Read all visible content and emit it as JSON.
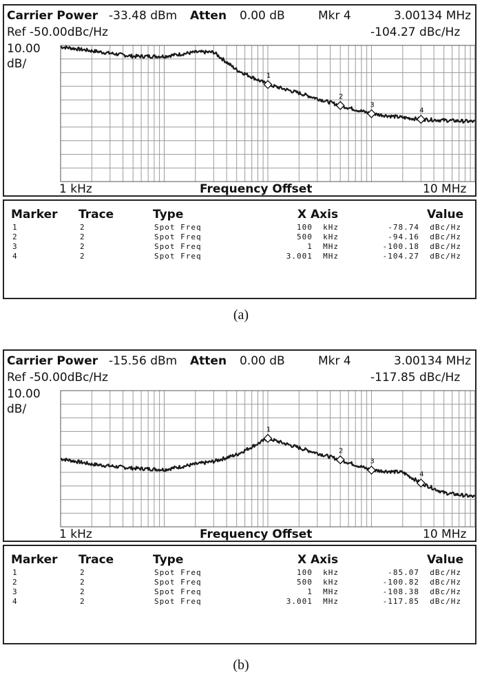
{
  "figures": [
    {
      "caption": "(a)",
      "header": {
        "carrier_label": "Carrier Power",
        "carrier_value": "-33.48 dBm",
        "atten_label": "Atten",
        "atten_value": "0.00 dB",
        "mkr_label": "Mkr 4",
        "mkr_freq": "3.00134 MHz",
        "ref_text": "Ref -50.00dBc/Hz",
        "mkr_value": "-104.27 dBc/Hz",
        "scale_top": "10.00",
        "scale_unit": "dB/"
      },
      "axis": {
        "start_label": "1 kHz",
        "center_label": "Frequency Offset",
        "end_label": "10 MHz"
      },
      "table": {
        "headers": [
          "Marker",
          "Trace",
          "Type",
          "X Axis",
          "Value"
        ],
        "rows": [
          {
            "marker": "1",
            "trace": "2",
            "type": "Spot Freq",
            "x_axis": "100  kHz",
            "value": "-78.74  dBc/Hz"
          },
          {
            "marker": "2",
            "trace": "2",
            "type": "Spot Freq",
            "x_axis": "500  kHz",
            "value": "-94.16  dBc/Hz"
          },
          {
            "marker": "3",
            "trace": "2",
            "type": "Spot Freq",
            "x_axis": "1  MHz",
            "value": "-100.18  dBc/Hz"
          },
          {
            "marker": "4",
            "trace": "2",
            "type": "Spot Freq",
            "x_axis": "3.001  MHz",
            "value": "-104.27  dBc/Hz"
          }
        ]
      }
    },
    {
      "caption": "(b)",
      "header": {
        "carrier_label": "Carrier Power",
        "carrier_value": "-15.56 dBm",
        "atten_label": "Atten",
        "atten_value": "0.00 dB",
        "mkr_label": "Mkr 4",
        "mkr_freq": "3.00134 MHz",
        "ref_text": "Ref -50.00dBc/Hz",
        "mkr_value": "-117.85 dBc/Hz",
        "scale_top": "10.00",
        "scale_unit": "dB/"
      },
      "axis": {
        "start_label": "1 kHz",
        "center_label": "Frequency Offset",
        "end_label": "10 MHz"
      },
      "table": {
        "headers": [
          "Marker",
          "Trace",
          "Type",
          "X Axis",
          "Value"
        ],
        "rows": [
          {
            "marker": "1",
            "trace": "2",
            "type": "Spot Freq",
            "x_axis": "100  kHz",
            "value": "-85.07  dBc/Hz"
          },
          {
            "marker": "2",
            "trace": "2",
            "type": "Spot Freq",
            "x_axis": "500  kHz",
            "value": "-100.82  dBc/Hz"
          },
          {
            "marker": "3",
            "trace": "2",
            "type": "Spot Freq",
            "x_axis": "1  MHz",
            "value": "-108.38  dBc/Hz"
          },
          {
            "marker": "4",
            "trace": "2",
            "type": "Spot Freq",
            "x_axis": "3.001  MHz",
            "value": "-117.85  dBc/Hz"
          }
        ]
      }
    }
  ],
  "chart_data": [
    {
      "type": "line",
      "x_scale": "log",
      "xlim_hz": [
        1000,
        10000000
      ],
      "ylim_dBc_per_Hz": [
        -150,
        -50
      ],
      "y_div_dB": 10,
      "grid": true,
      "series": [
        {
          "x_hz": [
            1000,
            2000,
            5000,
            10000,
            20000,
            30000,
            50000,
            100000,
            200000,
            500000,
            1000000,
            2000000,
            3001000,
            5000000,
            10000000
          ],
          "y_dBc_per_Hz": [
            -51,
            -54,
            -58,
            -58,
            -55,
            -55,
            -68,
            -78.74,
            -85,
            -94.16,
            -100.18,
            -103,
            -104.27,
            -105,
            -106
          ]
        }
      ],
      "markers": [
        {
          "label": "1",
          "x_hz": 100000,
          "y_dBc_per_Hz": -78.74
        },
        {
          "label": "2",
          "x_hz": 500000,
          "y_dBc_per_Hz": -94.16
        },
        {
          "label": "3",
          "x_hz": 1000000,
          "y_dBc_per_Hz": -100.18
        },
        {
          "label": "4",
          "x_hz": 3001000,
          "y_dBc_per_Hz": -104.27
        }
      ]
    },
    {
      "type": "line",
      "x_scale": "log",
      "xlim_hz": [
        1000,
        10000000
      ],
      "ylim_dBc_per_Hz": [
        -150,
        -50
      ],
      "y_div_dB": 10,
      "grid": true,
      "series": [
        {
          "x_hz": [
            1000,
            2000,
            5000,
            10000,
            20000,
            30000,
            50000,
            100000,
            200000,
            500000,
            1000000,
            2000000,
            3001000,
            5000000,
            10000000
          ],
          "y_dBc_per_Hz": [
            -100,
            -104,
            -107,
            -108,
            -104,
            -102,
            -97,
            -85.07,
            -92,
            -100.82,
            -108.38,
            -110,
            -117.85,
            -125,
            -128
          ]
        }
      ],
      "markers": [
        {
          "label": "1",
          "x_hz": 100000,
          "y_dBc_per_Hz": -85.07
        },
        {
          "label": "2",
          "x_hz": 500000,
          "y_dBc_per_Hz": -100.82
        },
        {
          "label": "3",
          "x_hz": 1000000,
          "y_dBc_per_Hz": -108.38
        },
        {
          "label": "4",
          "x_hz": 3001000,
          "y_dBc_per_Hz": -117.85
        }
      ]
    }
  ]
}
